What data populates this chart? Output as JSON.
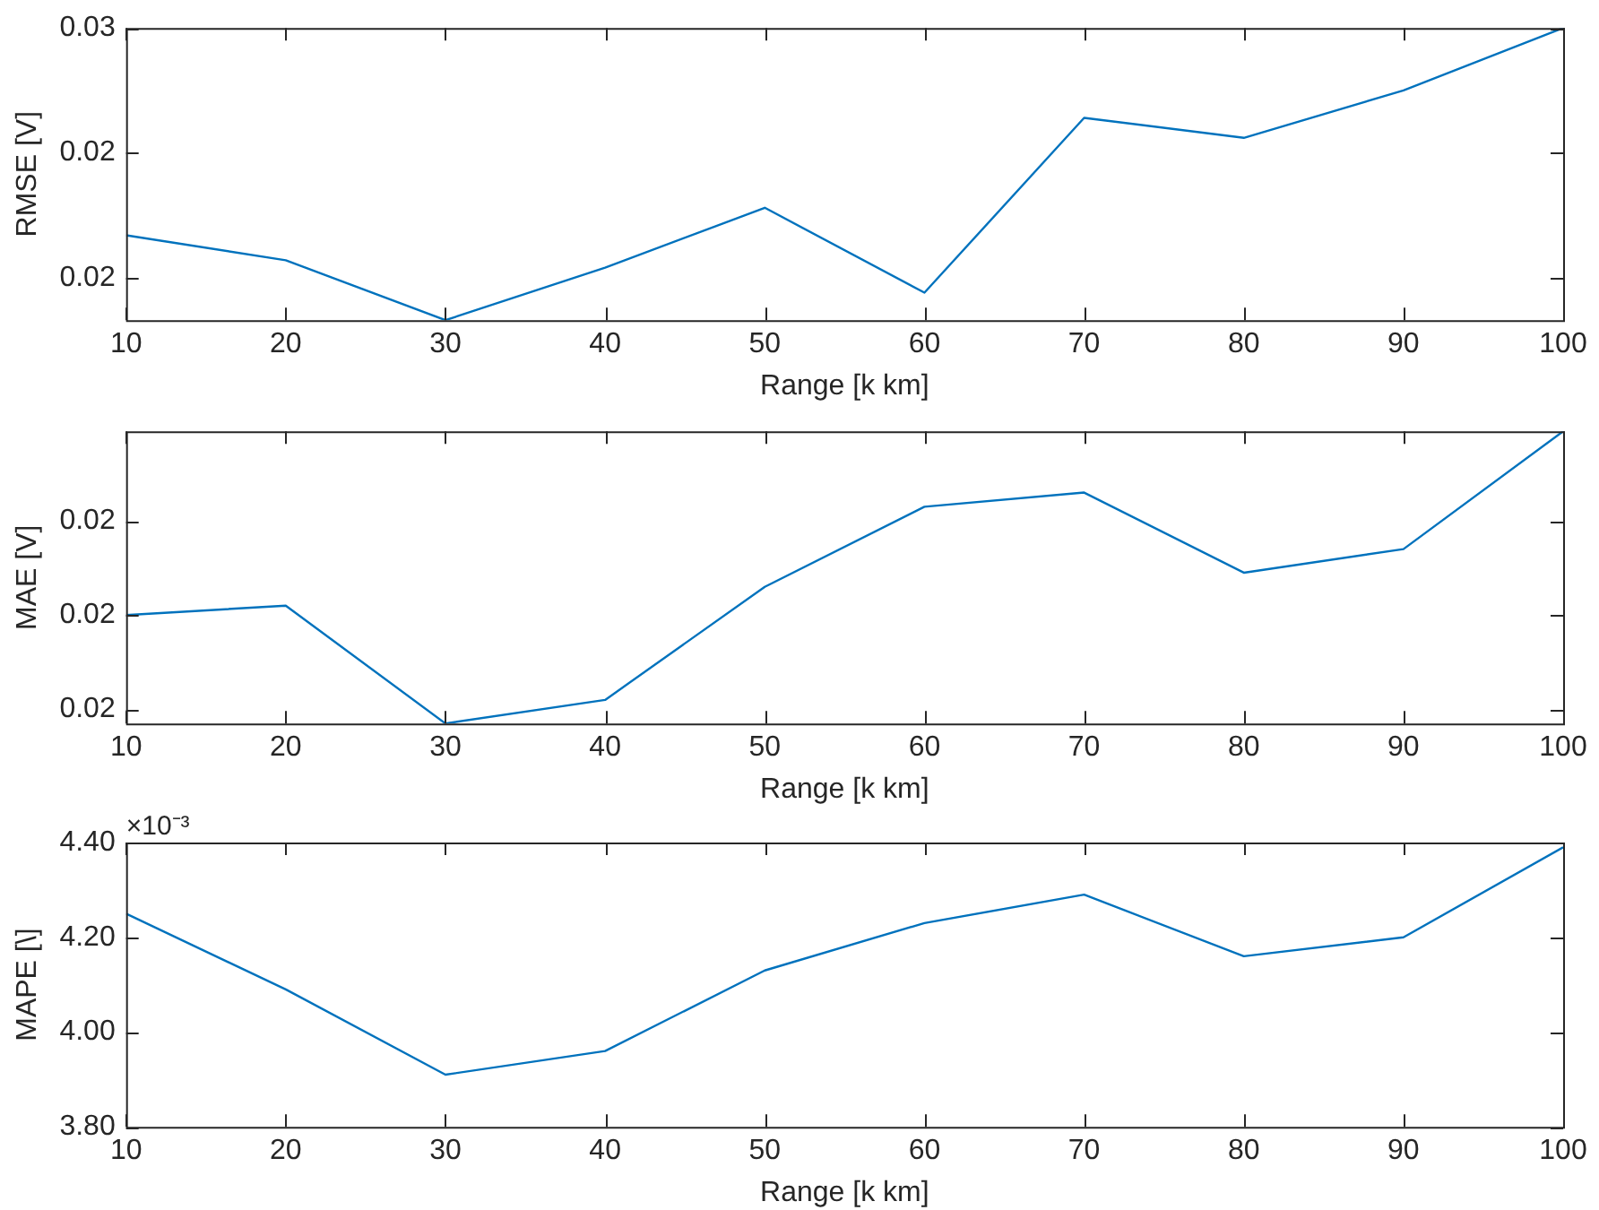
{
  "chart_data": [
    {
      "type": "line",
      "xlabel": "Range [k km]",
      "ylabel": "RMSE [V]",
      "x": [
        10,
        20,
        30,
        40,
        50,
        60,
        70,
        80,
        90,
        100
      ],
      "series": [
        {
          "color": "#0072bd",
          "values": [
            0.0217,
            0.0207,
            0.0183,
            0.0204,
            0.0228,
            0.0194,
            0.0264,
            0.0256,
            0.0275,
            0.03
          ]
        }
      ],
      "xlim": [
        10,
        100
      ],
      "xticks": [
        10,
        20,
        30,
        40,
        50,
        60,
        70,
        80,
        90,
        100
      ],
      "ylim": [
        0.0183,
        0.03
      ],
      "yticks": [
        {
          "value": 0.02,
          "label": "0.02"
        },
        {
          "value": 0.025,
          "label": "0.02"
        },
        {
          "value": 0.03,
          "label": "0.03"
        }
      ],
      "grid": false,
      "legend": false,
      "marker": "none"
    },
    {
      "type": "line",
      "xlabel": "Range [k km]",
      "ylabel": "MAE [V]",
      "x": [
        10,
        20,
        30,
        40,
        50,
        60,
        70,
        80,
        90,
        100
      ],
      "series": [
        {
          "color": "#0072bd",
          "values": [
            0.022,
            0.0222,
            0.0197,
            0.0202,
            0.0226,
            0.0243,
            0.0246,
            0.0229,
            0.0234,
            0.0259
          ]
        }
      ],
      "xlim": [
        10,
        100
      ],
      "xticks": [
        10,
        20,
        30,
        40,
        50,
        60,
        70,
        80,
        90,
        100
      ],
      "ylim": [
        0.0197,
        0.0259
      ],
      "yticks": [
        {
          "value": 0.02,
          "label": "0.02"
        },
        {
          "value": 0.022,
          "label": "0.02"
        },
        {
          "value": 0.024,
          "label": "0.02"
        }
      ],
      "grid": false,
      "legend": false,
      "marker": "none"
    },
    {
      "type": "line",
      "xlabel": "Range [k km]",
      "ylabel": "MAPE [\\]",
      "annotations": [
        "×10⁻³"
      ],
      "x": [
        10,
        20,
        30,
        40,
        50,
        60,
        70,
        80,
        90,
        100
      ],
      "series": [
        {
          "color": "#0072bd",
          "values": [
            4.25,
            4.09,
            3.91,
            3.96,
            4.13,
            4.23,
            4.29,
            4.16,
            4.2,
            4.39
          ]
        }
      ],
      "xlim": [
        10,
        100
      ],
      "xticks": [
        10,
        20,
        30,
        40,
        50,
        60,
        70,
        80,
        90,
        100
      ],
      "ylim": [
        3.8,
        4.4
      ],
      "yticks": [
        {
          "value": 3.8,
          "label": "3.80"
        },
        {
          "value": 4.0,
          "label": "4.00"
        },
        {
          "value": 4.2,
          "label": "4.20"
        },
        {
          "value": 4.4,
          "label": "4.40"
        }
      ],
      "grid": false,
      "legend": false,
      "marker": "none"
    }
  ]
}
